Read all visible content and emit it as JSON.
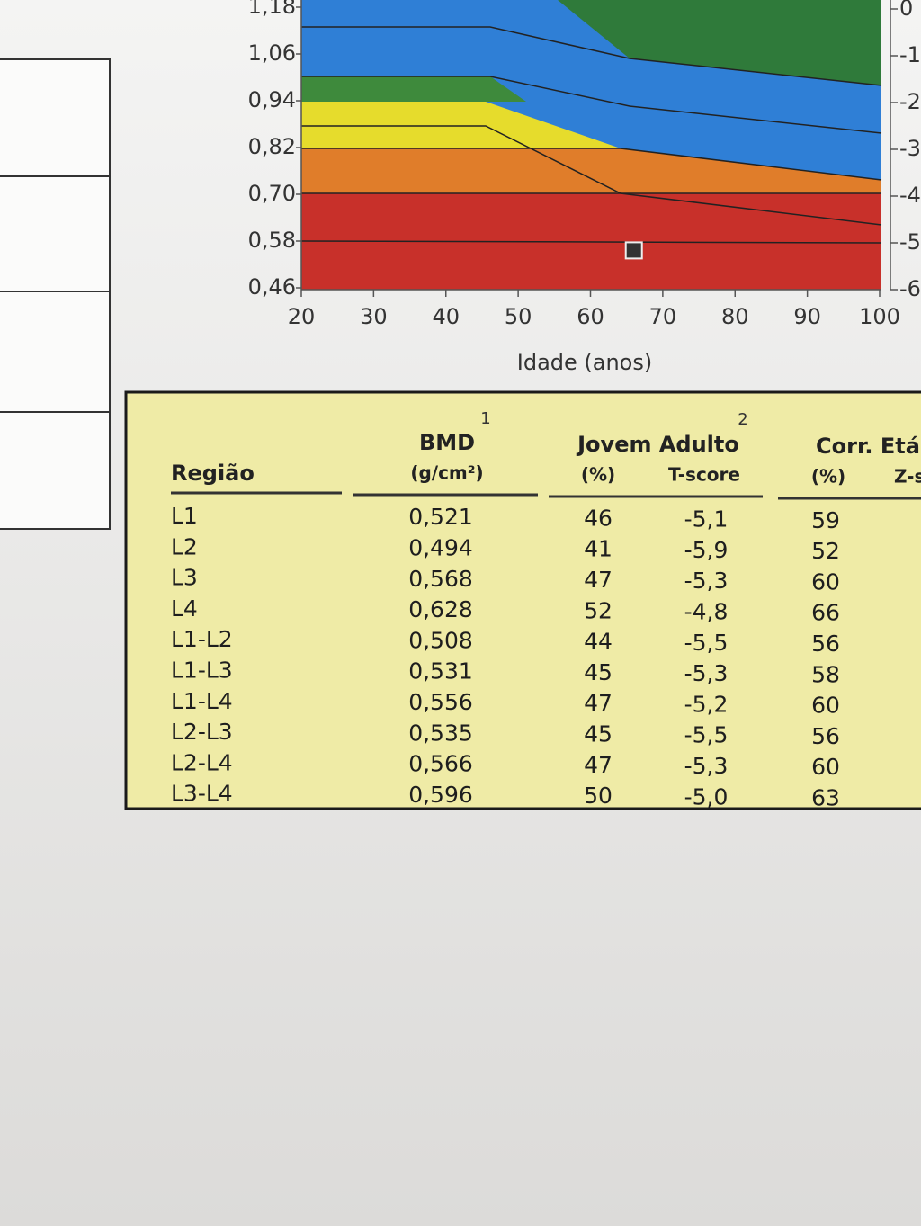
{
  "chart": {
    "type": "area",
    "x_label": "Idade (anos)",
    "xlim": [
      20,
      100
    ],
    "xticks": [
      20,
      30,
      40,
      50,
      60,
      70,
      80,
      90,
      100
    ],
    "ylim": [
      0.46,
      1.18
    ],
    "yticks": [
      {
        "value": 0.46,
        "label": "0,46"
      },
      {
        "value": 0.58,
        "label": "0,58"
      },
      {
        "value": 0.7,
        "label": "0,70"
      },
      {
        "value": 0.82,
        "label": "0,82"
      },
      {
        "value": 0.94,
        "label": "0,94"
      },
      {
        "value": 1.06,
        "label": "1,06"
      },
      {
        "value": 1.18,
        "label": "1,18"
      }
    ],
    "y2lim": [
      -6,
      0
    ],
    "y2ticks": [
      0,
      -1,
      -2,
      -3,
      -4,
      -5,
      -6
    ],
    "point": {
      "x": 66,
      "y": 0.556
    }
  },
  "table": {
    "header": {
      "region": "Região",
      "bmd": "BMD",
      "bmd_note": "1",
      "bmd_unit": "(g/cm²)",
      "young_adult": "Jovem Adulto",
      "young_adult_note": "2",
      "ya_pct": "(%)",
      "t_score": "T-score",
      "age_matched": "Corr. Etá",
      "am_pct": "(%)",
      "z_score": "Z-s"
    },
    "rows": [
      [
        "L1",
        "0,521",
        "46",
        "-5,1",
        "59"
      ],
      [
        "L2",
        "0,494",
        "41",
        "-5,9",
        "52"
      ],
      [
        "L3",
        "0,568",
        "47",
        "-5,3",
        "60"
      ],
      [
        "L4",
        "0,628",
        "52",
        "-4,8",
        "66"
      ],
      [
        "L1-L2",
        "0,508",
        "44",
        "-5,5",
        "56"
      ],
      [
        "L1-L3",
        "0,531",
        "45",
        "-5,3",
        "58"
      ],
      [
        "L1-L4",
        "0,556",
        "47",
        "-5,2",
        "60"
      ],
      [
        "L2-L3",
        "0,535",
        "45",
        "-5,5",
        "56"
      ],
      [
        "L2-L4",
        "0,566",
        "47",
        "-5,3",
        "60"
      ],
      [
        "L3-L4",
        "0,596",
        "50",
        "-5,0",
        "63"
      ]
    ]
  }
}
